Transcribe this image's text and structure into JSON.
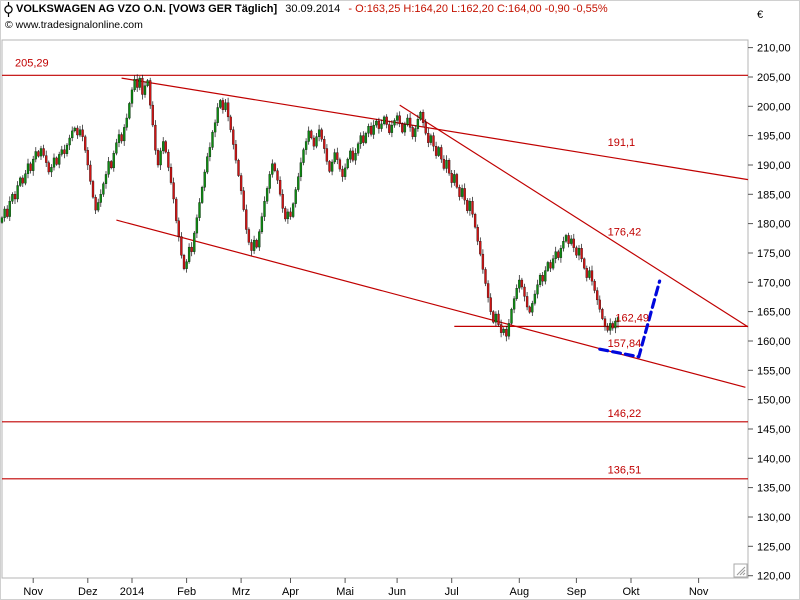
{
  "header": {
    "title": "VOLKSWAGEN AG VZO O.N. [VOW3 GER  Täglich]",
    "date": "30.09.2014",
    "ohlc": "- O:163,25 H:164,20 L:162,20 C:164,00 -0,90 -0,55%",
    "copyright": "© www.tradesignalonline.com"
  },
  "colors": {
    "up": "#0e8a12",
    "down": "#cc1414",
    "annotation": "#c00000",
    "projection": "#0008dd",
    "wick": "#111111",
    "axis": "#555555",
    "border": "#b5b5b5"
  },
  "chart_data": {
    "type": "candlestick",
    "instrument": "VOLKSWAGEN AG VZO O.N.",
    "symbol": "VOW3 GER",
    "timeframe": "Täglich",
    "currency": "€",
    "last_quote": {
      "date": "30.09.2014",
      "open": 163.25,
      "high": 164.2,
      "low": 162.2,
      "close": 164.0,
      "change": "-0,90",
      "change_pct": "-0,55%"
    },
    "y_axis": {
      "min": 120,
      "max": 210,
      "step": 5
    },
    "x_axis": {
      "total_days": 287,
      "ticks": [
        {
          "label": "Nov",
          "day": 12
        },
        {
          "label": "Dez",
          "day": 33
        },
        {
          "label": "2014",
          "day": 50
        },
        {
          "label": "Feb",
          "day": 71
        },
        {
          "label": "Mrz",
          "day": 92
        },
        {
          "label": "Apr",
          "day": 111
        },
        {
          "label": "Mai",
          "day": 132
        },
        {
          "label": "Jun",
          "day": 152
        },
        {
          "label": "Jul",
          "day": 173
        },
        {
          "label": "Aug",
          "day": 199
        },
        {
          "label": "Sep",
          "day": 221
        },
        {
          "label": "Okt",
          "day": 242
        },
        {
          "label": "Nov",
          "day": 268
        }
      ]
    },
    "closes": [
      181.0,
      182.5,
      181.2,
      183.8,
      185.0,
      184.2,
      186.5,
      187.8,
      186.9,
      188.5,
      190.2,
      189.0,
      191.0,
      192.3,
      191.5,
      192.8,
      191.6,
      190.4,
      188.8,
      189.6,
      191.2,
      190.1,
      191.8,
      192.6,
      191.9,
      193.4,
      194.6,
      195.8,
      196.3,
      195.1,
      196.0,
      194.8,
      192.5,
      190.0,
      187.2,
      184.5,
      182.3,
      183.6,
      185.0,
      186.8,
      188.4,
      190.6,
      189.5,
      192.0,
      193.8,
      195.2,
      194.1,
      196.4,
      198.0,
      200.5,
      202.8,
      204.6,
      203.2,
      204.8,
      202.0,
      203.5,
      204.4,
      200.2,
      196.8,
      192.5,
      190.0,
      192.4,
      194.0,
      192.2,
      189.6,
      187.0,
      184.2,
      180.5,
      177.8,
      174.6,
      172.3,
      173.5,
      176.0,
      175.2,
      178.4,
      181.0,
      183.6,
      186.2,
      188.8,
      191.4,
      193.0,
      195.6,
      197.2,
      199.8,
      201.0,
      199.4,
      200.6,
      198.2,
      196.0,
      193.5,
      190.8,
      188.2,
      185.6,
      182.4,
      179.0,
      176.8,
      175.4,
      177.2,
      176.0,
      178.6,
      181.2,
      183.8,
      186.0,
      188.4,
      190.2,
      189.0,
      187.4,
      185.0,
      182.6,
      180.8,
      182.0,
      181.2,
      183.4,
      185.8,
      188.0,
      190.4,
      192.6,
      194.0,
      195.8,
      194.6,
      193.2,
      194.8,
      196.0,
      194.4,
      192.8,
      190.6,
      188.9,
      190.5,
      192.1,
      190.9,
      189.3,
      188.0,
      189.5,
      191.0,
      192.4,
      190.8,
      192.0,
      193.6,
      195.0,
      193.8,
      195.4,
      196.6,
      195.2,
      196.8,
      197.5,
      196.2,
      197.0,
      198.2,
      196.9,
      195.5,
      196.8,
      197.6,
      198.4,
      197.0,
      195.6,
      196.9,
      198.0,
      196.4,
      194.8,
      196.2,
      197.8,
      199.0,
      197.2,
      195.4,
      193.8,
      195.0,
      193.2,
      191.6,
      193.0,
      191.0,
      189.4,
      190.8,
      188.6,
      187.0,
      188.4,
      186.2,
      184.6,
      186.0,
      184.0,
      182.2,
      183.8,
      181.6,
      179.4,
      177.0,
      174.8,
      172.2,
      169.8,
      167.4,
      165.0,
      163.2,
      164.6,
      162.8,
      161.4,
      162.0,
      160.8,
      163.0,
      165.4,
      167.2,
      169.0,
      170.4,
      169.2,
      167.6,
      165.8,
      164.9,
      166.4,
      168.0,
      169.6,
      171.2,
      170.2,
      172.0,
      173.4,
      172.4,
      174.0,
      175.2,
      174.2,
      175.8,
      177.0,
      178.0,
      176.6,
      177.4,
      175.9,
      174.6,
      175.8,
      174.0,
      172.4,
      170.8,
      172.0,
      170.2,
      168.6,
      167.0,
      165.4,
      163.8,
      162.4,
      161.8,
      163.0,
      162.2,
      163.4,
      164.0
    ],
    "annotations": {
      "h_lines": [
        {
          "price": 205.29,
          "label": "205,29",
          "from_day": 0,
          "to_day": 287
        },
        {
          "price": 162.49,
          "label": "162,49",
          "from_day": 174,
          "to_day": 287
        },
        {
          "price": 146.22,
          "label": "146,22",
          "from_day": 0,
          "to_day": 287
        },
        {
          "price": 136.51,
          "label": "136,51",
          "from_day": 0,
          "to_day": 287
        }
      ],
      "trend_lines": [
        {
          "name": "upper-resistance",
          "from_day": 46,
          "from_price": 204.8,
          "to_day": 287,
          "to_price": 187.5,
          "label": "191,1"
        },
        {
          "name": "steep-resistance",
          "from_day": 153,
          "from_price": 200.2,
          "to_day": 287,
          "to_price": 162.4,
          "label": "176,42"
        },
        {
          "name": "lower-channel",
          "from_day": 44,
          "from_price": 180.6,
          "to_day": 286,
          "to_price": 152.1,
          "label": "157,84"
        }
      ],
      "labels": [
        {
          "text": "205,29",
          "day": 5,
          "price": 206.8
        },
        {
          "text": "191,1",
          "day": 233,
          "price": 193.2
        },
        {
          "text": "176,42",
          "day": 233,
          "price": 178.0
        },
        {
          "text": "162,49",
          "day": 236,
          "price": 163.3
        },
        {
          "text": "157,84",
          "day": 233,
          "price": 159.0
        },
        {
          "text": "146,22",
          "day": 233,
          "price": 147.0
        },
        {
          "text": "136,51",
          "day": 233,
          "price": 137.4
        }
      ],
      "projection": {
        "points": [
          {
            "day": 230,
            "price": 158.6
          },
          {
            "day": 245,
            "price": 157.3
          },
          {
            "day": 253,
            "price": 170.2
          }
        ]
      }
    }
  }
}
